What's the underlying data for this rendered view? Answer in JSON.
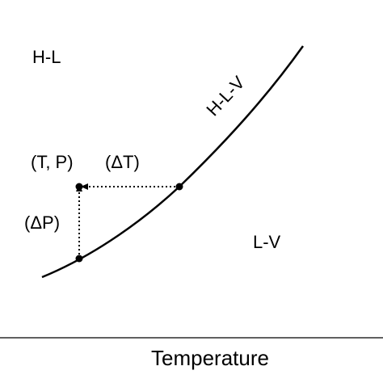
{
  "labels": {
    "region_hl": "H-L",
    "curve_hlv": "H-L-V",
    "region_lv": "L-V",
    "state_point": "(T, P)",
    "delta_t": "(ΔT)",
    "delta_p": "(ΔP)",
    "x_axis": "Temperature"
  },
  "colors": {
    "ink": "#000000",
    "background": "#ffffff"
  }
}
